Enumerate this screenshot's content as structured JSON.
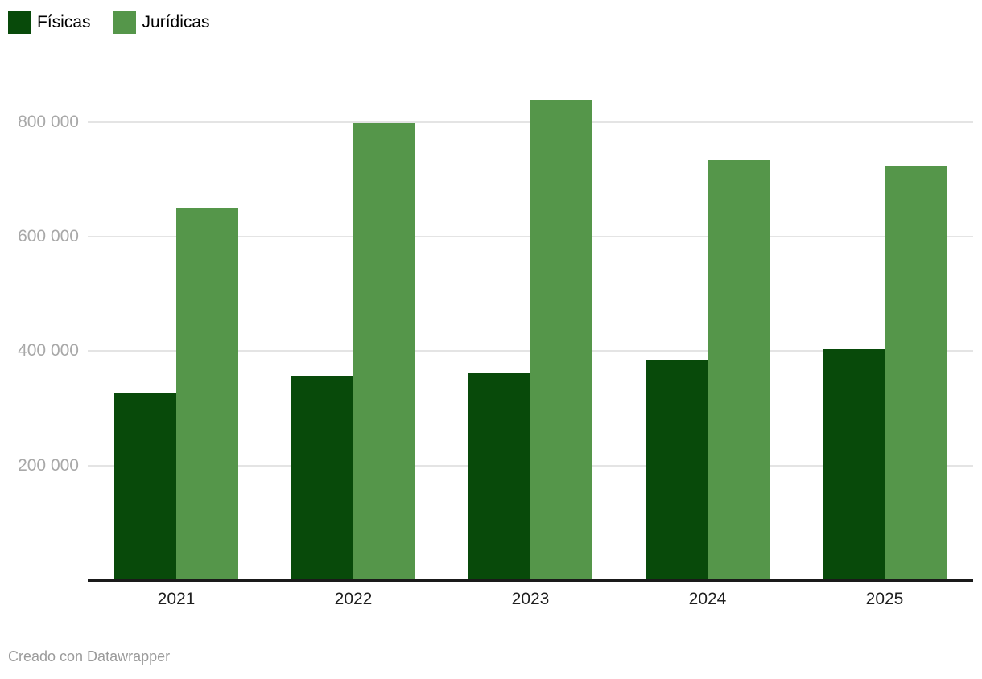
{
  "legend": {
    "items": [
      {
        "label": "Físicas",
        "color": "#084a0a"
      },
      {
        "label": "Jurídicas",
        "color": "#55964a"
      }
    ]
  },
  "footer": {
    "text": "Creado con Datawrapper"
  },
  "chart_data": {
    "type": "bar",
    "title": "",
    "xlabel": "",
    "ylabel": "",
    "categories": [
      "2021",
      "2022",
      "2023",
      "2024",
      "2025"
    ],
    "series": [
      {
        "name": "Físicas",
        "color": "#084a0a",
        "values": [
          325000,
          355000,
          360000,
          382000,
          402000
        ]
      },
      {
        "name": "Jurídicas",
        "color": "#55964a",
        "values": [
          648000,
          797000,
          838000,
          732000,
          723000
        ]
      }
    ],
    "ylim": [
      0,
      880000
    ],
    "yticks": [
      200000,
      400000,
      600000,
      800000
    ],
    "ytick_labels": [
      "200 000",
      "400 000",
      "600 000",
      "800 000"
    ],
    "grid": true,
    "legend_position": "top-left",
    "attribution": "Creado con Datawrapper"
  },
  "colors": {
    "background": "#ffffff",
    "grid": "#e4e4e4",
    "axis": "#1a1a1a",
    "tick_label": "#a8a8a8",
    "x_label": "#1f1f1f",
    "footer_text": "#9b9b9b"
  }
}
